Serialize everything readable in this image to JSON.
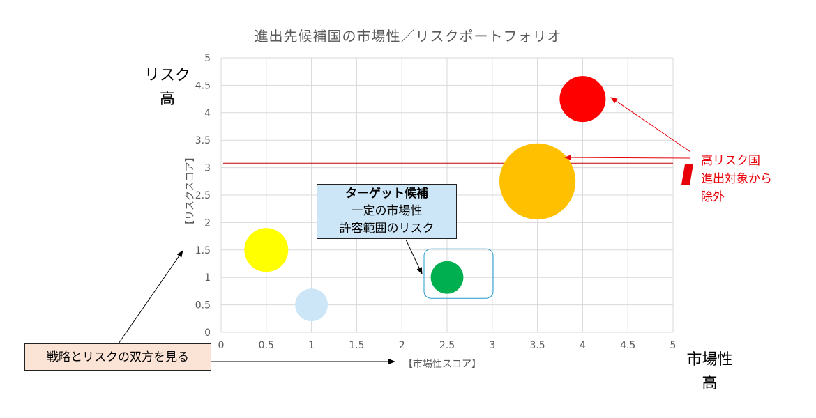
{
  "chart_data": {
    "type": "bubble",
    "title": "進出先候補国の市場性／リスクポートフォリオ",
    "xlabel": "【市場性スコア】",
    "ylabel": "【リスクスコア】",
    "xlim": [
      0,
      5
    ],
    "ylim": [
      0,
      5
    ],
    "x_ticks": [
      "0",
      "0.5",
      "1",
      "1.5",
      "2",
      "2.5",
      "3",
      "3.5",
      "4",
      "4.5",
      "5"
    ],
    "y_ticks": [
      "0",
      "0.5",
      "1",
      "1.5",
      "2",
      "2.5",
      "3",
      "3.5",
      "4",
      "4.5",
      "5"
    ],
    "grid": true,
    "threshold_y": 3.08,
    "points": [
      {
        "x": 0.5,
        "y": 1.5,
        "size": 1.0,
        "color": "#ffff00"
      },
      {
        "x": 1.0,
        "y": 0.5,
        "size": 0.55,
        "color": "#cce6f7"
      },
      {
        "x": 2.5,
        "y": 1.0,
        "size": 0.55,
        "color": "#00b050"
      },
      {
        "x": 3.5,
        "y": 2.75,
        "size": 3.0,
        "color": "#ffc000"
      },
      {
        "x": 4.0,
        "y": 4.25,
        "size": 1.1,
        "color": "#ff0000"
      }
    ],
    "highlight_point": 2
  },
  "labels": {
    "risk_high_line1": "リスク",
    "risk_high_line2": "高",
    "market_high_line1": "市場性",
    "market_high_line2": "高",
    "strategy_note": "戦略とリスクの双方を見る",
    "target_title": "ターゲット候補",
    "target_line1": "一定の市場性",
    "target_line2": "許容範囲のリスク",
    "high_risk_line1": "高リスク国",
    "high_risk_line2": "進出対象から",
    "high_risk_line3": "除外"
  },
  "colors": {
    "grid": "#d9d9d9",
    "tick_text": "#595959",
    "threshold": "#c00000",
    "accent_red": "#e8000a",
    "highlight_border": "#1f9bd1"
  }
}
